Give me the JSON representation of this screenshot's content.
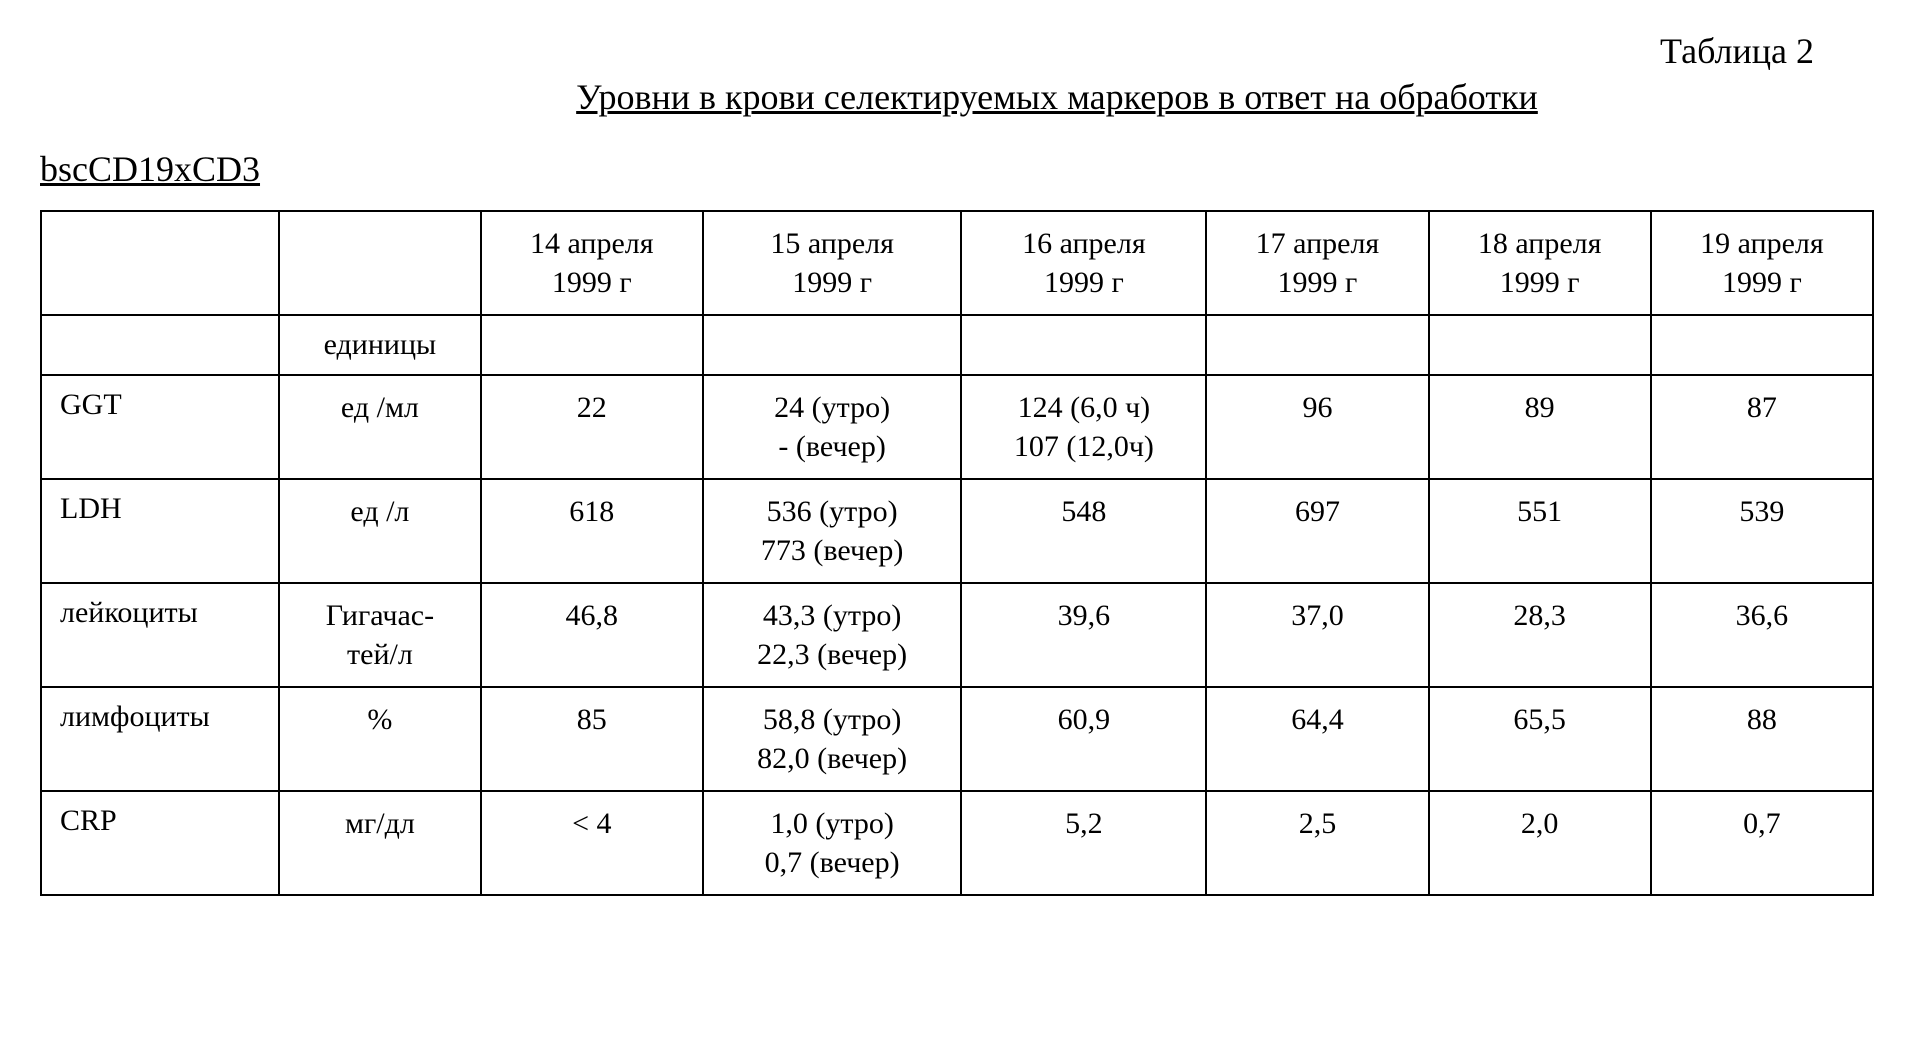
{
  "header": {
    "table_number": "Таблица 2",
    "caption": "Уровни в крови селектируемых маркеров в ответ на обработки",
    "subtitle": "bscCD19xCD3"
  },
  "table": {
    "columns": [
      "",
      "",
      "14 апреля\n1999 г",
      "15 апреля\n1999 г",
      "16 апреля\n1999 г",
      "17 апреля\n1999 г",
      "18 апреля\n1999 г",
      "19 апреля\n1999 г"
    ],
    "units_row_label": "единицы",
    "rows": [
      {
        "name": "GGT",
        "unit": "ед /мл",
        "values": [
          "22",
          "24 (утро)\n- (вечер)",
          "124 (6,0 ч)\n107 (12,0ч)",
          "96",
          "89",
          "87"
        ]
      },
      {
        "name": "LDH",
        "unit": "ед /л",
        "values": [
          "618",
          "536 (утро)\n773 (вечер)",
          "548",
          "697",
          "551",
          "539"
        ]
      },
      {
        "name": "лейкоциты",
        "unit": "Гигачас-\nтей/л",
        "values": [
          "46,8",
          "43,3 (утро)\n22,3 (вечер)",
          "39,6",
          "37,0",
          "28,3",
          "36,6"
        ]
      },
      {
        "name": "лимфоциты",
        "unit": "%",
        "values": [
          "85",
          "58,8 (утро)\n82,0 (вечер)",
          "60,9",
          "64,4",
          "65,5",
          "88"
        ]
      },
      {
        "name": "CRP",
        "unit": "мг/дл",
        "values": [
          "< 4",
          "1,0 (утро)\n0,7 (вечер)",
          "5,2",
          "2,5",
          "2,0",
          "0,7"
        ]
      }
    ]
  }
}
